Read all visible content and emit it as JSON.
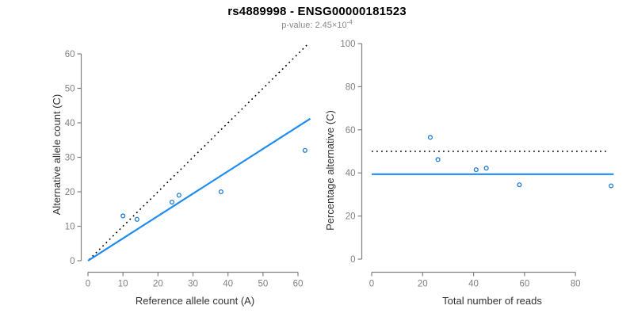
{
  "header": {
    "title": "rs4889998 - ENSG00000181523",
    "pvalue_label": "p-value: ",
    "pvalue_mantissa": "2.45",
    "pvalue_times": "×10",
    "pvalue_exponent": "-4"
  },
  "colors": {
    "title": "#000000",
    "subtitle": "#8a8a8a",
    "axis": "#828282",
    "tick_label": "#808080",
    "axis_title": "#333333",
    "fit_line": "#1f8cf0",
    "identity_line": "#000000",
    "point_stroke": "#1e7bd0"
  },
  "chart_data": [
    {
      "type": "scatter",
      "name": "allele-counts-scatter",
      "title": "",
      "xlabel": "Reference allele count (A)",
      "ylabel": "Alternative allele count (C)",
      "xlim": [
        0,
        63.5
      ],
      "ylim": [
        0,
        63
      ],
      "xticks": [
        0,
        10,
        20,
        30,
        40,
        50,
        60
      ],
      "yticks": [
        0,
        10,
        20,
        30,
        40,
        50,
        60
      ],
      "grid": false,
      "legend": null,
      "points": [
        [
          10,
          13
        ],
        [
          14,
          12
        ],
        [
          24,
          17
        ],
        [
          26,
          19
        ],
        [
          38,
          20
        ],
        [
          62,
          32
        ]
      ],
      "lines": [
        {
          "name": "identity-line",
          "label": "identity (y=x)",
          "style": "dotted",
          "color": "#000000",
          "x": [
            0.3,
            62.6
          ],
          "y": [
            0.3,
            62.6
          ]
        },
        {
          "name": "fit-line",
          "label": "allelic ratio fit (slope 0.649)",
          "style": "solid",
          "color": "#1f8cf0",
          "x": [
            0,
            63.5
          ],
          "y": [
            0,
            41.2
          ]
        }
      ]
    },
    {
      "type": "scatter",
      "name": "percentage-vs-reads-scatter",
      "title": "",
      "xlabel": "Total number of reads",
      "ylabel": "Percentage alternative (C)",
      "xlim": [
        0,
        98
      ],
      "ylim": [
        0,
        104
      ],
      "xticks": [
        0,
        20,
        40,
        60,
        80
      ],
      "yticks": [
        0,
        20,
        40,
        60,
        80,
        100
      ],
      "grid": false,
      "legend": null,
      "points": [
        [
          23,
          56.5
        ],
        [
          26,
          46.2
        ],
        [
          41,
          41.5
        ],
        [
          45,
          42.2
        ],
        [
          58,
          34.5
        ],
        [
          94,
          34.0
        ]
      ],
      "lines": [
        {
          "name": "expected-50pct-line",
          "label": "expected 50%",
          "style": "dotted",
          "color": "#000000",
          "x": [
            0,
            92.5
          ],
          "y": [
            50,
            50
          ]
        },
        {
          "name": "mean-percentage-line",
          "label": "overall alternative % (39.4)",
          "style": "solid",
          "color": "#1f8cf0",
          "x": [
            0,
            95
          ],
          "y": [
            39.4,
            39.4
          ]
        }
      ]
    }
  ]
}
